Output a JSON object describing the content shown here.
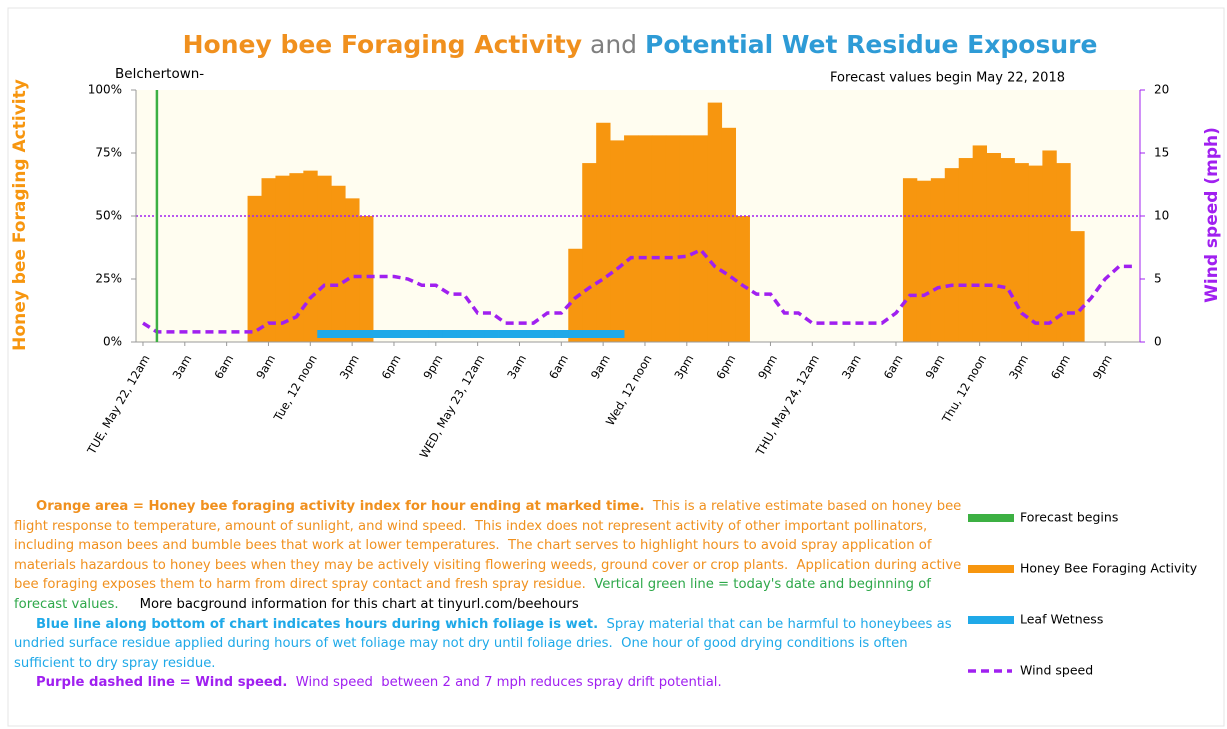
{
  "chart_data": {
    "type": "bar",
    "title_parts": [
      {
        "text": "Honey bee Foraging Activity",
        "color": "#f0901e"
      },
      {
        "text": " and ",
        "color": "#7f7f7f"
      },
      {
        "text": "Potential Wet Residue Exposure",
        "color": "#2e9bd6"
      }
    ],
    "location": "Belchertown-",
    "forecast_note": "Forecast values begin May 22, 2018",
    "y_label": "Honey bee  Foraging Activity",
    "y2_label": "Wind speed (mph)",
    "ylim": [
      0,
      100
    ],
    "yticks": [
      {
        "value": 0,
        "label": "0%"
      },
      {
        "value": 25,
        "label": "25%"
      },
      {
        "value": 50,
        "label": "50%"
      },
      {
        "value": 75,
        "label": "75%"
      },
      {
        "value": 100,
        "label": "100%"
      }
    ],
    "y2lim": [
      0,
      20
    ],
    "y2ticks": [
      0,
      5,
      10,
      15,
      20
    ],
    "threshold": 50,
    "threshold_color": "#a020f0",
    "forecast_start": 1,
    "forecast_color": "#3cb043",
    "categories": [
      "TUE, May 22, 12am",
      null,
      null,
      "3am",
      null,
      null,
      "6am",
      null,
      null,
      "9am",
      null,
      null,
      "Tue, 12 noon",
      null,
      null,
      "3pm",
      null,
      null,
      "6pm",
      null,
      null,
      "9pm",
      null,
      null,
      "WED, May 23, 12am",
      null,
      null,
      "3am",
      null,
      null,
      "6am",
      null,
      null,
      "9am",
      null,
      null,
      "Wed, 12 noon",
      null,
      null,
      "3pm",
      null,
      null,
      "6pm",
      null,
      null,
      "9pm",
      null,
      null,
      "THU, May 24, 12am",
      null,
      null,
      "3am",
      null,
      null,
      "6am",
      null,
      null,
      "9am",
      null,
      null,
      "Thu, 12 noon",
      null,
      null,
      "3pm",
      null,
      null,
      "6pm",
      null,
      null,
      "9pm",
      null,
      null
    ],
    "series": [
      {
        "name": "Honey Bee Foraging Activity",
        "color": "#f7960f",
        "values": [
          0,
          0,
          0,
          0,
          0,
          0,
          0,
          0,
          58,
          65,
          66,
          67,
          68,
          66,
          62,
          57,
          50,
          0,
          0,
          0,
          0,
          0,
          0,
          0,
          0,
          0,
          0,
          0,
          0,
          0,
          0,
          37,
          71,
          87,
          80,
          82,
          82,
          82,
          82,
          82,
          82,
          95,
          85,
          50,
          0,
          0,
          0,
          0,
          0,
          0,
          0,
          0,
          0,
          0,
          0,
          65,
          64,
          65,
          69,
          73,
          78,
          75,
          73,
          71,
          70,
          76,
          71,
          44,
          0,
          0,
          0,
          0
        ]
      },
      {
        "name": "Leaf Wetness",
        "color": "#1fa9e8",
        "values": [
          0,
          0,
          0,
          0,
          0,
          0,
          0,
          0,
          0,
          0,
          0,
          0,
          0,
          1,
          1,
          1,
          1,
          1,
          1,
          1,
          1,
          1,
          1,
          1,
          1,
          1,
          1,
          1,
          1,
          1,
          1,
          1,
          1,
          1,
          1,
          0,
          0,
          0,
          0,
          0,
          0,
          0,
          0,
          0,
          0,
          0,
          0,
          0,
          0,
          0,
          0,
          0,
          0,
          0,
          0,
          0,
          0,
          0,
          0,
          0,
          0,
          0,
          0,
          0,
          0,
          0,
          0,
          0,
          0,
          0,
          0,
          0
        ]
      },
      {
        "name": "Wind speed",
        "color": "#a020f0",
        "axis": "y2",
        "values": [
          1.5,
          0.8,
          0.8,
          0.8,
          0.8,
          0.8,
          0.8,
          0.8,
          0.8,
          1.5,
          1.5,
          2,
          3.5,
          4.5,
          4.5,
          5.2,
          5.2,
          5.2,
          5.2,
          5,
          4.5,
          4.5,
          3.8,
          3.8,
          2.3,
          2.3,
          1.5,
          1.5,
          1.5,
          2.3,
          2.3,
          3.5,
          4.3,
          5,
          5.8,
          6.7,
          6.7,
          6.7,
          6.7,
          6.8,
          7.3,
          6,
          5.3,
          4.5,
          3.8,
          3.8,
          2.3,
          2.3,
          1.5,
          1.5,
          1.5,
          1.5,
          1.5,
          1.5,
          2.3,
          3.7,
          3.7,
          4.3,
          4.5,
          4.5,
          4.5,
          4.5,
          4.3,
          2.3,
          1.5,
          1.5,
          2.3,
          2.3,
          3.5,
          5,
          6,
          6
        ]
      }
    ],
    "legend": [
      {
        "name": "Forecast begins",
        "color": "#3cb043"
      },
      {
        "name": "Honey Bee Foraging Activity",
        "color": "#f7960f"
      },
      {
        "name": "Leaf Wetness",
        "color": "#1fa9e8"
      },
      {
        "name": "Wind speed",
        "color": "#a020f0"
      }
    ],
    "notes": [
      [
        {
          "text": "Orange area = Honey bee foraging activity index for hour ending at marked time.",
          "bold": true,
          "color": "#f0901e"
        },
        {
          "text": "  This is a relative estimate based on honey bee flight response to temperature, amount of sunlight, and wind speed.  This index does not represent activity of other important pollinators, including mason bees and bumble bees that work at lower temperatures.  The chart serves to highlight hours to avoid spray application of materials hazardous to honey bees when they may be actively visiting flowering weeds, ground cover or crop plants.  Application during active bee foraging exposes them to harm from direct spray contact and fresh spray residue.",
          "bold": false,
          "color": "#f0901e"
        },
        {
          "text": "  Vertical green line = today's date and beginning of forecast values.",
          "bold": false,
          "color": "#2ea84a"
        },
        {
          "text": "     More bacground information for this chart at tinyurl.com/beehours",
          "bold": false,
          "color": "#000000"
        }
      ],
      [
        {
          "text": "Blue line along bottom of chart indicates hours during which foliage is wet.",
          "bold": true,
          "color": "#1fa9e8"
        },
        {
          "text": "  Spray material that can be harmful to honeybees as undried surface residue applied during hours of wet foliage may not dry until foliage dries.  One hour of good drying conditions is often sufficient to dry spray residue.",
          "bold": false,
          "color": "#1fa9e8"
        }
      ],
      [
        {
          "text": "Purple dashed line = Wind speed.",
          "bold": true,
          "color": "#a020f0"
        },
        {
          "text": "  Wind speed  between 2 and 7 mph reduces spray drift potential.",
          "bold": false,
          "color": "#a020f0"
        }
      ]
    ]
  }
}
